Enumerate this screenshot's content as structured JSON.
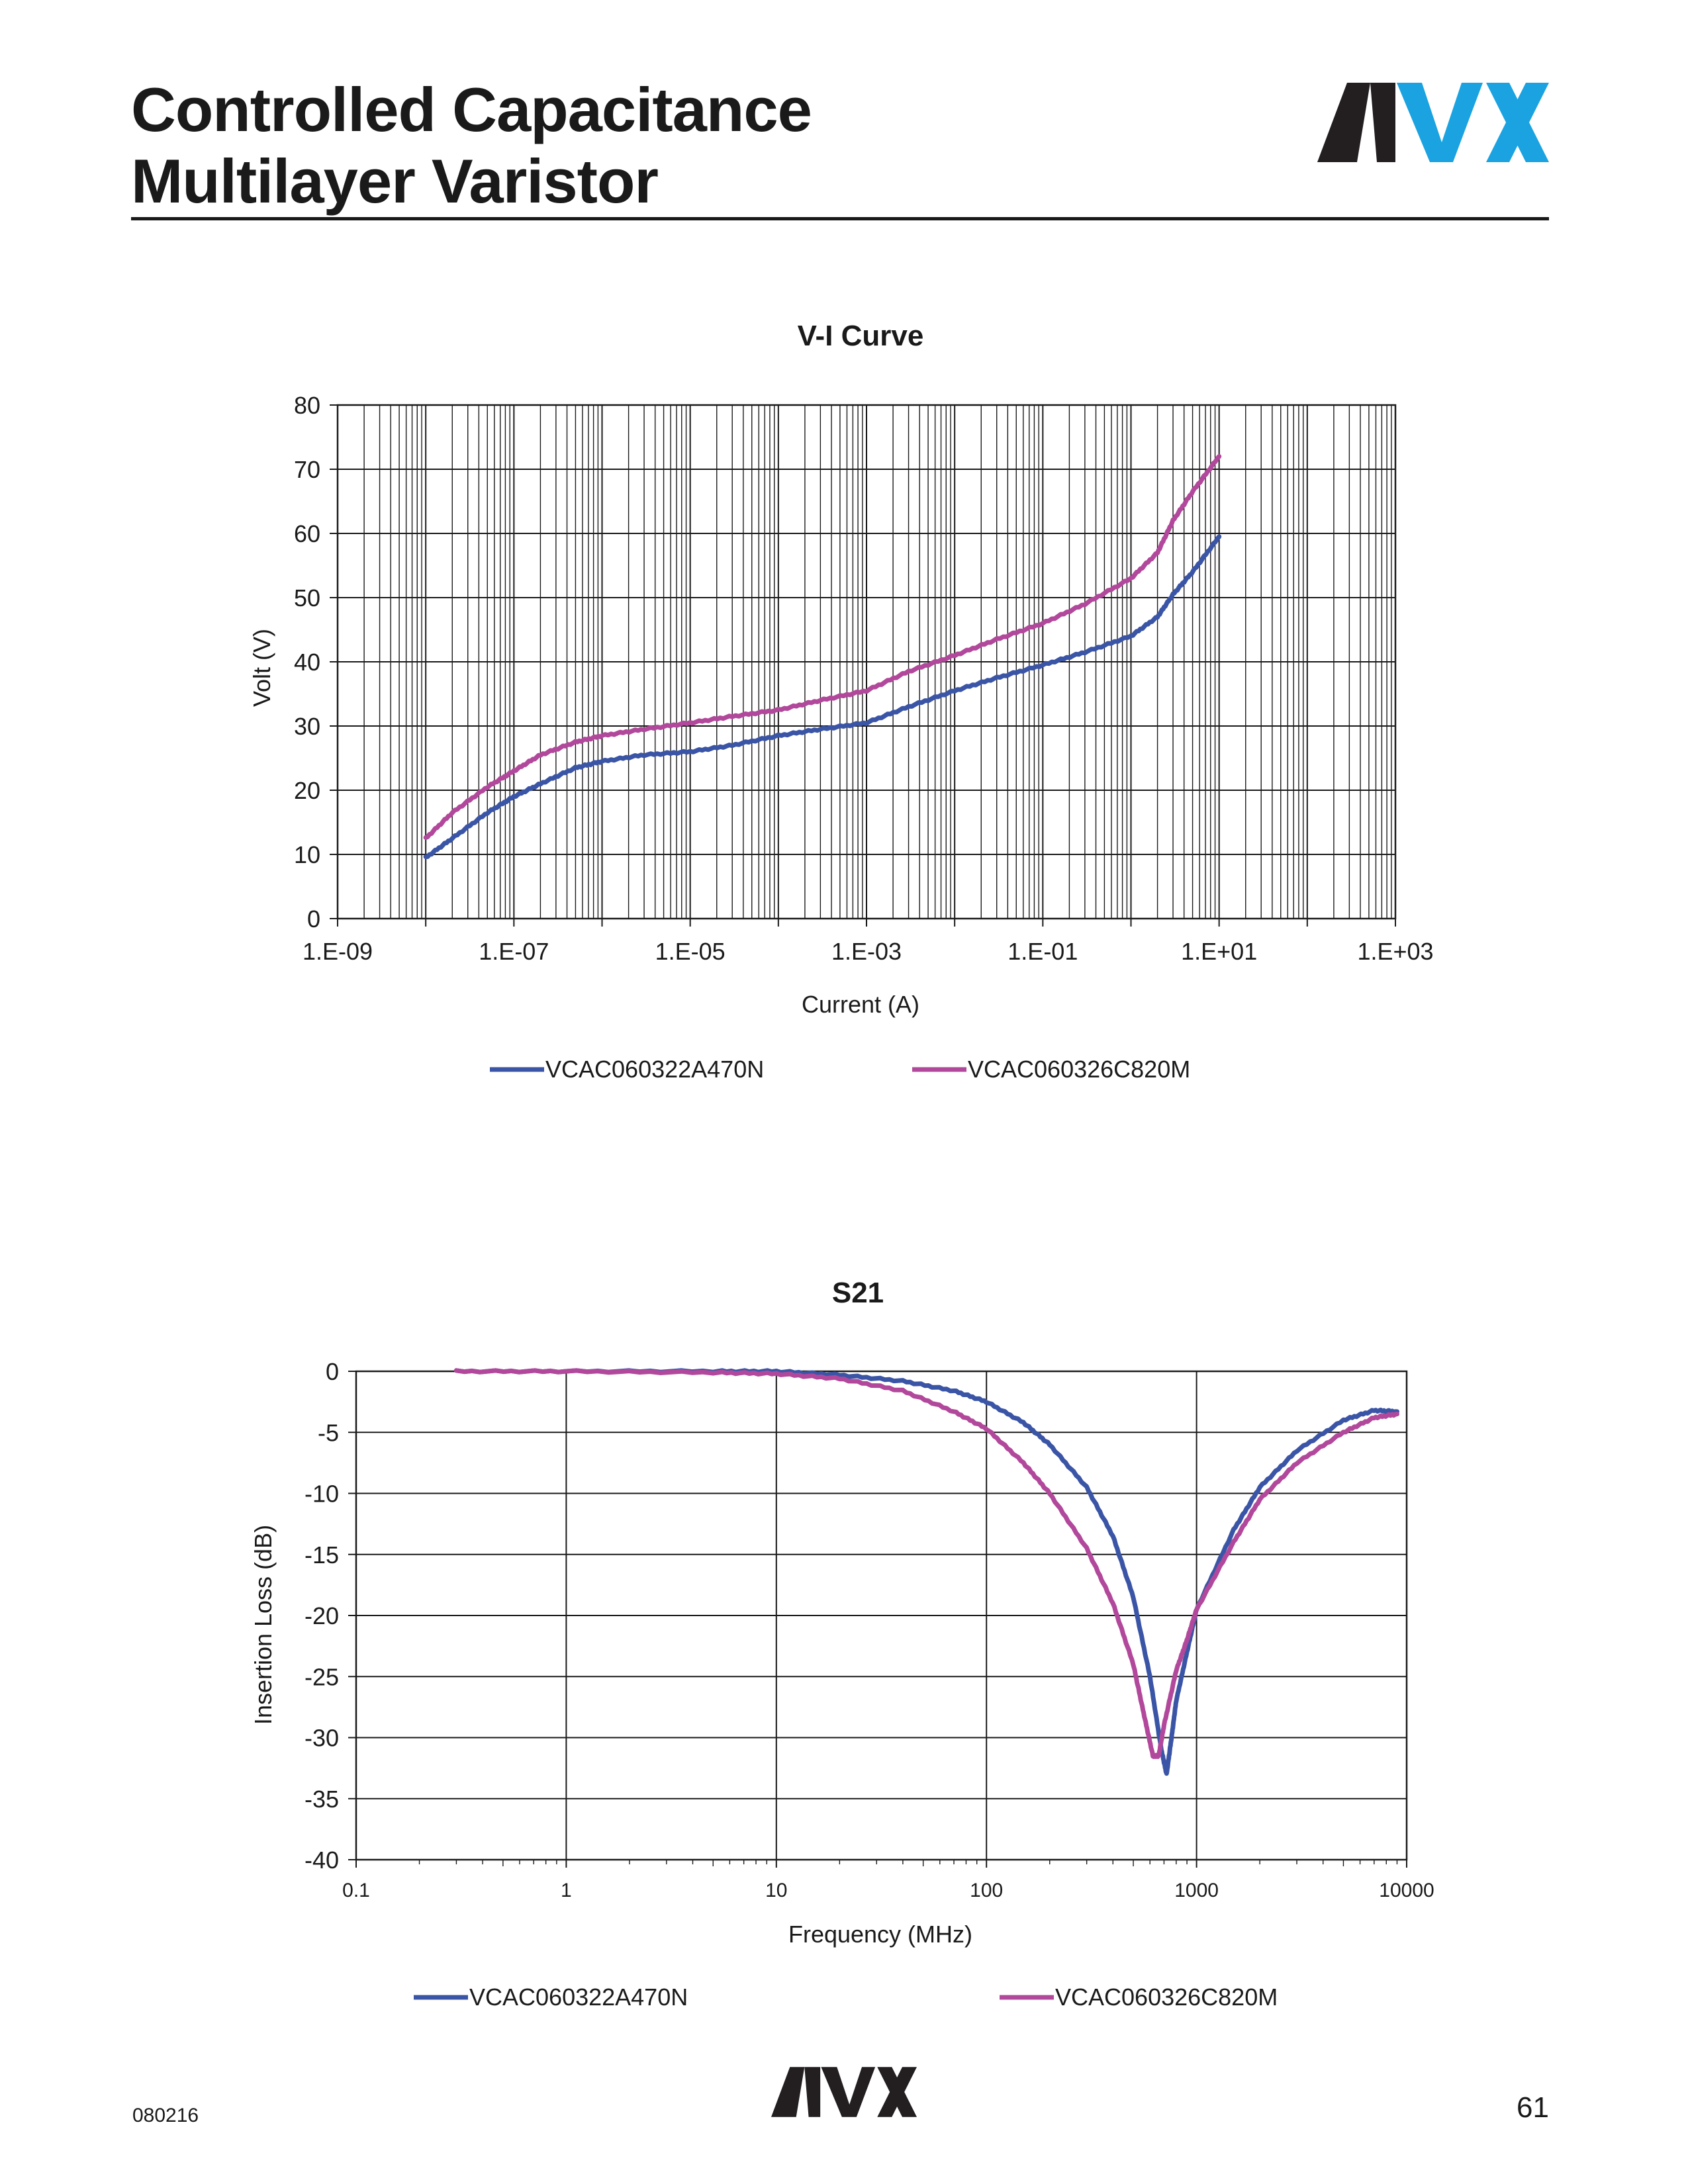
{
  "header": {
    "title_line1": "Controlled Capacitance",
    "title_line2": "Multilayer Varistor",
    "logo_text": "AVX"
  },
  "footer": {
    "code": "080216",
    "page_number": "61",
    "logo_text": "AVX"
  },
  "colors": {
    "series_blue": "#3b55a6",
    "series_magenta": "#b2489b",
    "logo_dark": "#231f20",
    "logo_cyan": "#1aa3e0",
    "grid": "#1a1a1a"
  },
  "chart_data": [
    {
      "type": "line",
      "title": "V-I Curve",
      "xlabel": "Current (A)",
      "ylabel": "Volt (V)",
      "x_scale": "log",
      "xlim": [
        1e-09,
        1000
      ],
      "ylim": [
        0,
        80
      ],
      "x_tick_labels": [
        "1.E-09",
        "1.E-07",
        "1.E-05",
        "1.E-03",
        "1.E-01",
        "1.E+01",
        "1.E+03"
      ],
      "y_ticks": [
        0,
        10,
        20,
        30,
        40,
        50,
        60,
        70,
        80
      ],
      "grid": true,
      "legend_position": "bottom",
      "series": [
        {
          "name": "VCAC060322A470N",
          "color": "#3b55a6",
          "x": [
            1e-08,
            2e-08,
            5e-08,
            1e-07,
            2e-07,
            5e-07,
            1e-06,
            3e-06,
            1e-05,
            3e-05,
            0.0001,
            0.0003,
            0.001,
            0.003,
            0.01,
            0.03,
            0.1,
            0.3,
            1,
            2,
            3,
            5,
            10
          ],
          "y": [
            9.5,
            12.5,
            16.5,
            19,
            21,
            23.5,
            24.5,
            25.5,
            26,
            27,
            28.5,
            29.5,
            30.5,
            33,
            35.5,
            37.5,
            39.5,
            41.5,
            44,
            47,
            50.5,
            54,
            59.5
          ]
        },
        {
          "name": "VCAC060326C820M",
          "color": "#b2489b",
          "x": [
            1e-08,
            2e-08,
            5e-08,
            1e-07,
            2e-07,
            5e-07,
            1e-06,
            3e-06,
            1e-05,
            3e-05,
            0.0001,
            0.0003,
            0.001,
            0.003,
            0.01,
            0.03,
            0.1,
            0.3,
            1,
            2,
            3,
            5,
            10
          ],
          "y": [
            12.5,
            16.5,
            20.5,
            23,
            25.5,
            27.5,
            28.5,
            29.5,
            30.5,
            31.5,
            32.5,
            34,
            35.5,
            38.5,
            41,
            43.5,
            46,
            49,
            53,
            57,
            62,
            66.5,
            72
          ]
        }
      ]
    },
    {
      "type": "line",
      "title": "S21",
      "xlabel": "Frequency (MHz)",
      "ylabel": "Insertion Loss (dB)",
      "x_scale": "log",
      "xlim": [
        0.1,
        10000
      ],
      "ylim": [
        -40,
        0
      ],
      "x_tick_labels": [
        "0.1",
        "1",
        "10",
        "100",
        "1000",
        "10000"
      ],
      "y_tick_labels": [
        "0",
        "-5",
        "-10",
        "-15",
        "-20",
        "-25",
        "-30",
        "-35",
        "-40"
      ],
      "grid": true,
      "legend_position": "bottom",
      "series": [
        {
          "name": "VCAC060322A470N",
          "color": "#3b55a6",
          "x": [
            0.3,
            1,
            5,
            10,
            20,
            40,
            70,
            100,
            150,
            200,
            300,
            400,
            500,
            600,
            680,
            720,
            760,
            800,
            900,
            1000,
            1500,
            2000,
            3000,
            5000,
            7000,
            9000
          ],
          "y": [
            0,
            0,
            0,
            0,
            -0.3,
            -0.8,
            -1.6,
            -2.5,
            -4.2,
            -6,
            -9.5,
            -13.5,
            -18.5,
            -25,
            -31,
            -33,
            -30,
            -27,
            -23,
            -19.5,
            -13,
            -9.5,
            -6.5,
            -4,
            -3.2,
            -3.3
          ]
        },
        {
          "name": "VCAC060326C820M",
          "color": "#b2489b",
          "x": [
            0.3,
            1,
            5,
            10,
            20,
            40,
            70,
            100,
            150,
            200,
            300,
            400,
            500,
            560,
            620,
            660,
            700,
            800,
            900,
            1000,
            1500,
            2000,
            3000,
            5000,
            7000,
            9000
          ],
          "y": [
            0,
            0,
            -0.1,
            -0.2,
            -0.6,
            -1.6,
            -3.3,
            -4.7,
            -7.5,
            -10,
            -14.5,
            -19,
            -24,
            -28,
            -31.5,
            -31.5,
            -29,
            -24.5,
            -22,
            -19.5,
            -14,
            -10.5,
            -7.5,
            -5,
            -3.8,
            -3.5
          ]
        }
      ]
    }
  ]
}
